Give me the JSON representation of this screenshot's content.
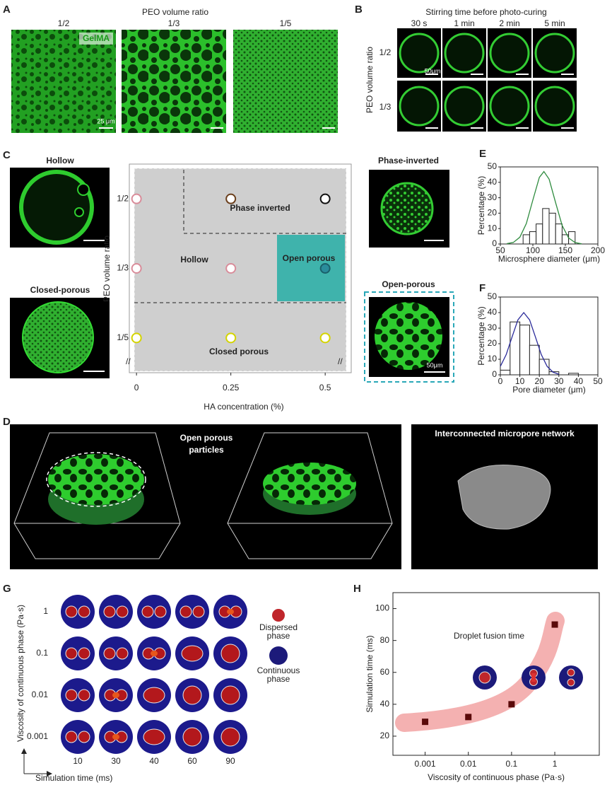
{
  "panels": {
    "A": {
      "label": "A",
      "title": "PEO volume ratio",
      "columns": [
        "1/2",
        "1/3",
        "1/5"
      ],
      "stain": "GelMA",
      "scale_bar": "25 μm"
    },
    "B": {
      "label": "B",
      "title": "Stirring time before photo-curing",
      "columns": [
        "30 s",
        "1 min",
        "2 min",
        "5 min"
      ],
      "row_axis": "PEO volume ratio",
      "rows": [
        "1/2",
        "1/3"
      ],
      "scale_bar": "50μm"
    },
    "C": {
      "label": "C",
      "images": [
        "Hollow",
        "Closed-porous",
        "Phase-inverted",
        "Open-porous"
      ],
      "scale_bar": "50μm"
    },
    "D": {
      "label": "D",
      "caption_left": [
        "Open porous",
        "particles"
      ],
      "caption_right": "Interconnected micropore network"
    },
    "E": {
      "label": "E"
    },
    "F": {
      "label": "F"
    },
    "G": {
      "label": "G",
      "y_label": "Viscosity of continuous phase (Pa·s)",
      "rows": [
        1,
        0.1,
        0.01,
        0.001
      ],
      "x_label": "Simulation time (ms)",
      "columns": [
        10,
        30,
        40,
        60,
        90
      ],
      "legend": [
        [
          "Dispersed",
          "phase"
        ],
        [
          "Continuous",
          "phase"
        ]
      ]
    },
    "H": {
      "label": "H"
    }
  },
  "chart_data": [
    {
      "type": "phase",
      "x_label": "HA concentration (%)",
      "y_label": "PEO volume ratio",
      "xlim": [
        -0.019,
        0.569
      ],
      "xticks": [
        0,
        0.25,
        0.5
      ],
      "y_categories": [
        "1/2",
        "1/3",
        "1/5"
      ],
      "regions": [
        "Phase inverted",
        "Hollow",
        "Open porous",
        "Closed porous"
      ],
      "series": [
        {
          "x": [
            0,
            0.25,
            0.5
          ],
          "colors": [
            "#d98c9a",
            "#6b3f1c",
            "#111111"
          ]
        },
        {
          "x": [
            0,
            0.25,
            0.5
          ],
          "colors": [
            "#d98c9a",
            "#d98c9a",
            "#2a8c9b"
          ]
        },
        {
          "x": [
            0,
            0.25,
            0.5
          ],
          "colors": [
            "#d4d400",
            "#d4d400",
            "#d4d400"
          ]
        }
      ]
    },
    {
      "type": "histogram",
      "x_label": "Microsphere diameter (μm)",
      "y_label": "Percentage (%)",
      "bins": [
        85,
        95,
        105,
        115,
        125,
        135,
        145,
        155,
        165
      ],
      "values": [
        6,
        8,
        13,
        23,
        20,
        13,
        6,
        8
      ],
      "xlim": [
        50,
        200
      ],
      "xticks": [
        50,
        100,
        150,
        200
      ],
      "ylim": [
        0,
        50
      ],
      "yticks": [
        0,
        10,
        20,
        30,
        40,
        50
      ],
      "fit": {
        "color": "#2e8b3e",
        "x": [
          60,
          70,
          80,
          90,
          100,
          110,
          117,
          125,
          135,
          145,
          155,
          165,
          175
        ],
        "values": [
          0.2,
          1,
          4.4,
          13.3,
          28.5,
          43.2,
          47,
          42.1,
          26.8,
          12.1,
          3.9,
          0.9,
          0.1
        ]
      }
    },
    {
      "type": "histogram",
      "x_label": "Pore diameter (μm)",
      "y_label": "Percentage (%)",
      "bins": [
        0,
        5,
        10,
        15,
        20,
        25,
        30,
        35,
        40
      ],
      "values": [
        3,
        34,
        32,
        19,
        10,
        2,
        0,
        1
      ],
      "xlim": [
        0,
        50
      ],
      "xticks": [
        0,
        10,
        20,
        30,
        40,
        50
      ],
      "ylim": [
        0,
        50
      ],
      "yticks": [
        0,
        10,
        20,
        30,
        40,
        50
      ],
      "fit": {
        "color": "#2a2a9a",
        "x": [
          0,
          3,
          6,
          9,
          12,
          15,
          18,
          21,
          24,
          27,
          30
        ],
        "values": [
          5.4,
          13,
          24.3,
          35.3,
          40,
          35.3,
          24.3,
          13,
          5.4,
          1.7,
          0.4
        ]
      }
    },
    {
      "type": "scatter",
      "log_x": true,
      "x_label": "Viscosity of continuous phase (Pa·s)",
      "y_label": "Simulation time (ms)",
      "annotation": "Droplet fusion time",
      "x": [
        0.001,
        0.01,
        0.1,
        1
      ],
      "values": [
        29,
        32,
        40,
        90
      ],
      "color": "#5a0a0a",
      "xlim": [
        0.00018,
        10.7
      ],
      "xticks": [
        0.001,
        0.01,
        0.1,
        1
      ],
      "ylim": [
        8,
        110
      ],
      "yticks": [
        20,
        40,
        60,
        80,
        100
      ]
    }
  ]
}
